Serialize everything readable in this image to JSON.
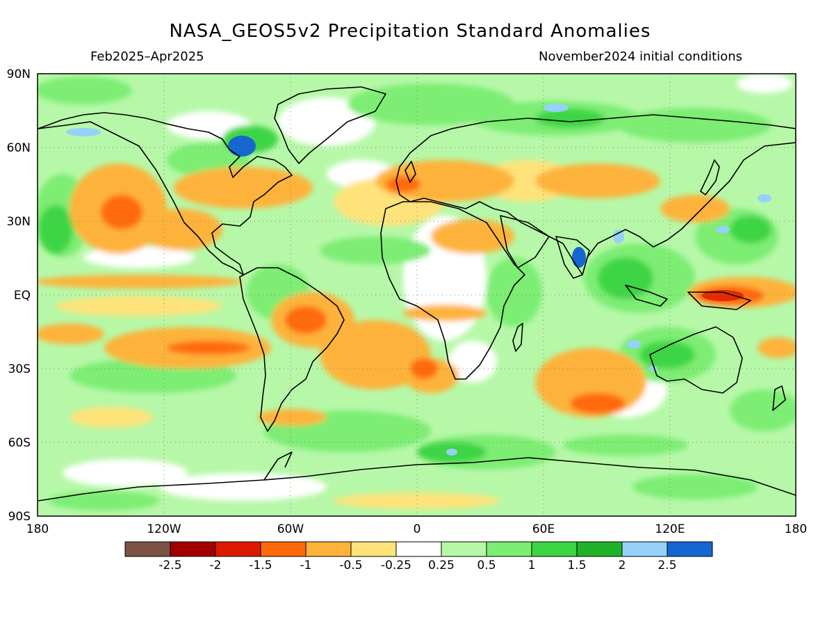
{
  "title": "NASA_GEOS5v2 Precipitation Standard Anomalies",
  "period": "Feb2025–Apr2025",
  "init": "November2024 initial conditions",
  "lat_labels": [
    "90N",
    "60N",
    "30N",
    "EQ",
    "30S",
    "60S",
    "90S"
  ],
  "lon_labels": [
    "180",
    "120W",
    "60W",
    "0",
    "60E",
    "120E",
    "180"
  ],
  "legend": {
    "colors": [
      "#7b5244",
      "#a20000",
      "#dd1a00",
      "#fe6a0a",
      "#fdb33a",
      "#fee37a",
      "#ffffff",
      "#b6f8a8",
      "#7ded73",
      "#3ed544",
      "#1fb228",
      "#96d1fa",
      "#1566d1"
    ],
    "labels": [
      "-2.5",
      "-2",
      "-1.5",
      "-1",
      "-0.5",
      "-0.25",
      "0.25",
      "0.5",
      "1",
      "1.5",
      "2",
      "2.5"
    ]
  },
  "colors": {
    "dry_strong": "#dd1a00",
    "dry_moderate": "#fe6a0a",
    "dry_weak": "#fdb33a",
    "dry_slight": "#fee37a",
    "wet_slight": "#b6f8a8",
    "wet_weak": "#7ded73",
    "wet_moderate": "#3ed544",
    "wet_strong": "#1fb228",
    "very_wet": "#96d1fa",
    "extreme_wet": "#1566d1"
  }
}
